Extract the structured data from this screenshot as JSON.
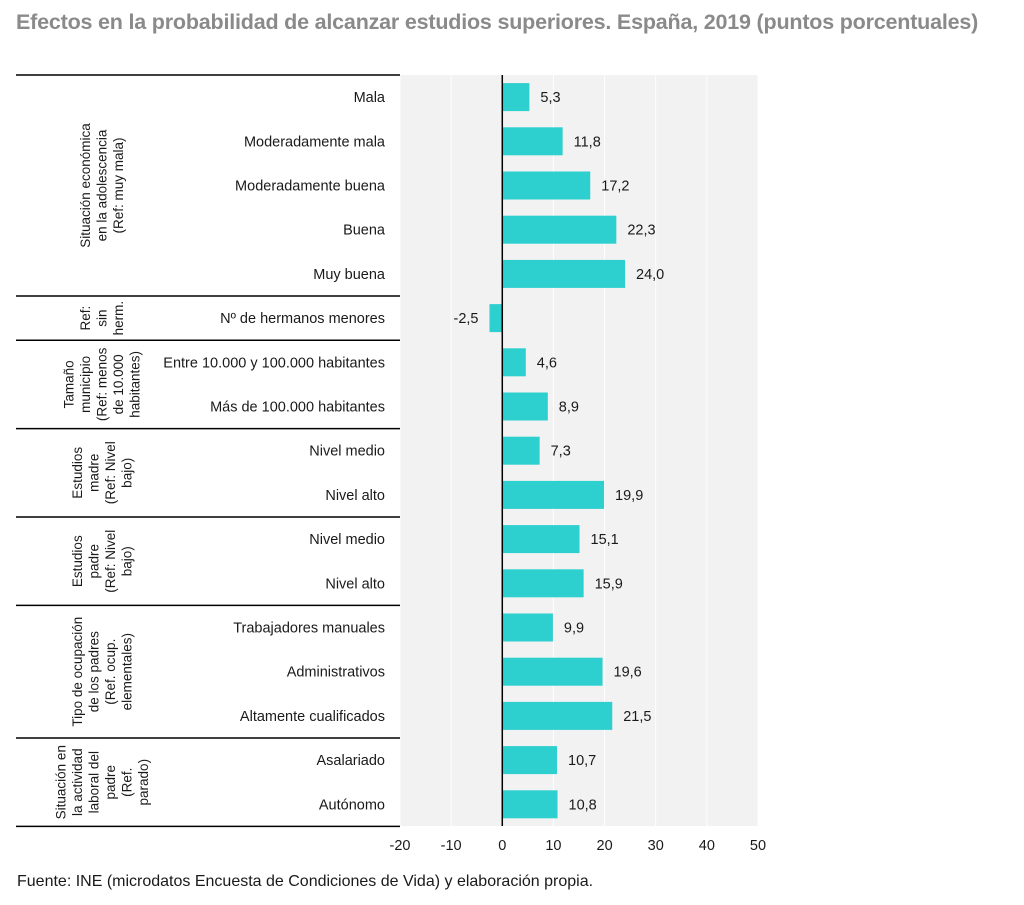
{
  "title": "Efectos en la probabilidad de alcanzar estudios superiores. España, 2019 (puntos porcentuales)",
  "source": "Fuente: INE (microdatos Encuesta de Condiciones de Vida) y elaboración propia.",
  "colors": {
    "bar": "#2ecfcf",
    "plot_bg": "#f2f2f2",
    "grid": "#ffffff",
    "zero_line": "#000000",
    "separator": "#000000",
    "title": "#8a8a8a"
  },
  "chart_data": {
    "type": "bar",
    "orientation": "horizontal",
    "title": "Efectos en la probabilidad de alcanzar estudios superiores. España, 2019 (puntos porcentuales)",
    "xlim": [
      -20,
      50
    ],
    "xticks": [
      -20,
      -10,
      0,
      10,
      20,
      30,
      40,
      50
    ],
    "grid": true,
    "groups": [
      {
        "label_lines": [
          "Situación económica",
          "en la adolescencia",
          "(Ref: muy mala)"
        ],
        "items": [
          {
            "label": "Mala",
            "value": 5.3,
            "value_label": "5,3"
          },
          {
            "label": "Moderadamente mala",
            "value": 11.8,
            "value_label": "11,8"
          },
          {
            "label": "Moderadamente buena",
            "value": 17.2,
            "value_label": "17,2"
          },
          {
            "label": "Buena",
            "value": 22.3,
            "value_label": "22,3"
          },
          {
            "label": "Muy buena",
            "value": 24.0,
            "value_label": "24,0"
          }
        ]
      },
      {
        "label_lines": [
          "Ref:",
          "sin",
          "herm."
        ],
        "items": [
          {
            "label": "Nº de hermanos menores",
            "value": -2.5,
            "value_label": "-2,5"
          }
        ]
      },
      {
        "label_lines": [
          "Tamaño",
          "municipio",
          "(Ref: menos",
          "de 10.000",
          "habitantes)"
        ],
        "items": [
          {
            "label": "Entre 10.000 y 100.000 habitantes",
            "value": 4.6,
            "value_label": "4,6"
          },
          {
            "label": "Más de 100.000 habitantes",
            "value": 8.9,
            "value_label": "8,9"
          }
        ]
      },
      {
        "label_lines": [
          "Estudios",
          "madre",
          "(Ref: Nivel",
          "bajo)"
        ],
        "items": [
          {
            "label": "Nivel medio",
            "value": 7.3,
            "value_label": "7,3"
          },
          {
            "label": "Nivel alto",
            "value": 19.9,
            "value_label": "19,9"
          }
        ]
      },
      {
        "label_lines": [
          "Estudios",
          "padre",
          "(Ref: Nivel",
          "bajo)"
        ],
        "items": [
          {
            "label": "Nivel medio",
            "value": 15.1,
            "value_label": "15,1"
          },
          {
            "label": "Nivel alto",
            "value": 15.9,
            "value_label": "15,9"
          }
        ]
      },
      {
        "label_lines": [
          "Tipo de ocupación",
          "de los padres",
          "(Ref. ocup.",
          "elementales)"
        ],
        "items": [
          {
            "label": "Trabajadores manuales",
            "value": 9.9,
            "value_label": "9,9"
          },
          {
            "label": "Administrativos",
            "value": 19.6,
            "value_label": "19,6"
          },
          {
            "label": "Altamente cualificados",
            "value": 21.5,
            "value_label": "21,5"
          }
        ]
      },
      {
        "label_lines": [
          "Situación en",
          "la actividad",
          "laboral del",
          "padre",
          "(Ref.",
          "parado)"
        ],
        "items": [
          {
            "label": "Asalariado",
            "value": 10.7,
            "value_label": "10,7"
          },
          {
            "label": "Autónomo",
            "value": 10.8,
            "value_label": "10,8"
          }
        ]
      }
    ]
  }
}
